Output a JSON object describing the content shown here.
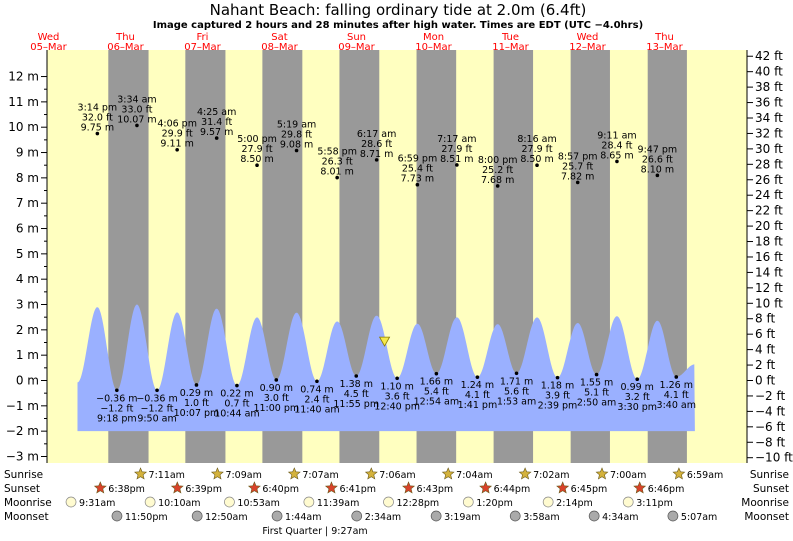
{
  "title": "Nahant Beach: falling  ordinary tide at 2.0m (6.4ft)",
  "subtitle": "Image captured 2 hours and 28 minutes after high water. Times are EDT (UTC −4.0hrs)",
  "colors": {
    "sky_day": "#ffffc0",
    "night": "#999999",
    "water": "#9ab0ff",
    "day_label": "#ff0000",
    "sun_star": "#d4b23c",
    "sunset_star": "#d9422a",
    "moonrise": "#fffbd0",
    "moonset": "#aaaaaa"
  },
  "chart_data": {
    "type": "area",
    "y_left": {
      "unit": "m",
      "min": -3,
      "max": 12,
      "ticks": [
        "−3 m",
        "−2 m",
        "−1 m",
        "0 m",
        "1 m",
        "2 m",
        "3 m",
        "4 m",
        "5 m",
        "6 m",
        "7 m",
        "8 m",
        "9 m",
        "10 m",
        "11 m",
        "12 m"
      ]
    },
    "y_right": {
      "unit": "ft",
      "ticks": [
        "−10 ft",
        "−8 ft",
        "−6 ft",
        "−4 ft",
        "−2 ft",
        "0 ft",
        "2 ft",
        "4 ft",
        "6 ft",
        "8 ft",
        "10 ft",
        "12 ft",
        "14 ft",
        "16 ft",
        "18 ft",
        "20 ft",
        "22 ft",
        "24 ft",
        "26 ft",
        "28 ft",
        "30 ft",
        "32 ft",
        "34 ft",
        "36 ft",
        "38 ft",
        "40 ft",
        "42 ft"
      ]
    },
    "days": [
      {
        "dow": "Wed",
        "date": "05–Mar"
      },
      {
        "dow": "Thu",
        "date": "06–Mar"
      },
      {
        "dow": "Fri",
        "date": "07–Mar"
      },
      {
        "dow": "Sat",
        "date": "08–Mar"
      },
      {
        "dow": "Sun",
        "date": "09–Mar"
      },
      {
        "dow": "Mon",
        "date": "10–Mar"
      },
      {
        "dow": "Tue",
        "date": "11–Mar"
      },
      {
        "dow": "Wed",
        "date": "12–Mar"
      },
      {
        "dow": "Thu",
        "date": "13–Mar"
      }
    ],
    "tides": [
      {
        "kind": "high",
        "time": "3:14 pm",
        "ft": "32.0 ft",
        "m": "9.75 m",
        "value_m": 9.75,
        "day": 0,
        "hour": 15.23
      },
      {
        "kind": "low",
        "time": "9:18 pm",
        "ft": "−1.2 ft",
        "m": "−0.36 m",
        "value_m": -0.36,
        "day": 0,
        "hour": 21.3
      },
      {
        "kind": "high",
        "time": "3:34 am",
        "ft": "33.0 ft",
        "m": "10.07 m",
        "value_m": 10.07,
        "day": 1,
        "hour": 3.57
      },
      {
        "kind": "low",
        "time": "9:50 am",
        "ft": "−1.2 ft",
        "m": "−0.36 m",
        "value_m": -0.36,
        "day": 1,
        "hour": 9.83
      },
      {
        "kind": "high",
        "time": "4:06 pm",
        "ft": "29.9 ft",
        "m": "9.11 m",
        "value_m": 9.11,
        "day": 1,
        "hour": 16.1
      },
      {
        "kind": "low",
        "time": "10:07 pm",
        "ft": "1.0 ft",
        "m": "0.29 m",
        "value_m": 0.29,
        "day": 1,
        "hour": 22.12
      },
      {
        "kind": "high",
        "time": "4:25 am",
        "ft": "31.4 ft",
        "m": "9.57 m",
        "value_m": 9.57,
        "day": 2,
        "hour": 4.42
      },
      {
        "kind": "low",
        "time": "10:44 am",
        "ft": "0.7 ft",
        "m": "0.22 m",
        "value_m": 0.22,
        "day": 2,
        "hour": 10.73
      },
      {
        "kind": "high",
        "time": "5:00 pm",
        "ft": "27.9 ft",
        "m": "8.50 m",
        "value_m": 8.5,
        "day": 2,
        "hour": 17.0
      },
      {
        "kind": "low",
        "time": "11:00 pm",
        "ft": "3.0 ft",
        "m": "0.90 m",
        "value_m": 0.9,
        "day": 2,
        "hour": 23.0
      },
      {
        "kind": "high",
        "time": "5:19 am",
        "ft": "29.8 ft",
        "m": "9.08 m",
        "value_m": 9.08,
        "day": 3,
        "hour": 5.32
      },
      {
        "kind": "low",
        "time": "11:40 am",
        "ft": "2.4 ft",
        "m": "0.74 m",
        "value_m": 0.74,
        "day": 3,
        "hour": 11.67
      },
      {
        "kind": "high",
        "time": "5:58 pm",
        "ft": "26.3 ft",
        "m": "8.01 m",
        "value_m": 8.01,
        "day": 3,
        "hour": 17.97
      },
      {
        "kind": "low",
        "time": "11:55 pm",
        "ft": "4.5 ft",
        "m": "1.38 m",
        "value_m": 1.38,
        "day": 3,
        "hour": 23.92
      },
      {
        "kind": "high",
        "time": "6:17 am",
        "ft": "28.6 ft",
        "m": "8.71 m",
        "value_m": 8.71,
        "day": 4,
        "hour": 6.28
      },
      {
        "kind": "low",
        "time": "12:40 pm",
        "ft": "3.6 ft",
        "m": "1.10 m",
        "value_m": 1.1,
        "day": 4,
        "hour": 12.67
      },
      {
        "kind": "high",
        "time": "6:59 pm",
        "ft": "25.4 ft",
        "m": "7.73 m",
        "value_m": 7.73,
        "day": 4,
        "hour": 18.98
      },
      {
        "kind": "low",
        "time": "12:54 am",
        "ft": "5.4 ft",
        "m": "1.66 m",
        "value_m": 1.66,
        "day": 5,
        "hour": 0.9
      },
      {
        "kind": "high",
        "time": "7:17 am",
        "ft": "27.9 ft",
        "m": "8.51 m",
        "value_m": 8.51,
        "day": 5,
        "hour": 7.28
      },
      {
        "kind": "low",
        "time": "1:41 pm",
        "ft": "4.1 ft",
        "m": "1.24 m",
        "value_m": 1.24,
        "day": 5,
        "hour": 13.68
      },
      {
        "kind": "high",
        "time": "8:00 pm",
        "ft": "25.2 ft",
        "m": "7.68 m",
        "value_m": 7.68,
        "day": 5,
        "hour": 20.0
      },
      {
        "kind": "low",
        "time": "1:53 am",
        "ft": "5.6 ft",
        "m": "1.71 m",
        "value_m": 1.71,
        "day": 6,
        "hour": 1.88
      },
      {
        "kind": "high",
        "time": "8:16 am",
        "ft": "27.9 ft",
        "m": "8.50 m",
        "value_m": 8.5,
        "day": 6,
        "hour": 8.27
      },
      {
        "kind": "low",
        "time": "2:39 pm",
        "ft": "3.9 ft",
        "m": "1.18 m",
        "value_m": 1.18,
        "day": 6,
        "hour": 14.65
      },
      {
        "kind": "high",
        "time": "8:57 pm",
        "ft": "25.7 ft",
        "m": "7.82 m",
        "value_m": 7.82,
        "day": 6,
        "hour": 20.95
      },
      {
        "kind": "low",
        "time": "2:50 am",
        "ft": "5.1 ft",
        "m": "1.55 m",
        "value_m": 1.55,
        "day": 7,
        "hour": 2.83
      },
      {
        "kind": "high",
        "time": "9:11 am",
        "ft": "28.4 ft",
        "m": "8.65 m",
        "value_m": 8.65,
        "day": 7,
        "hour": 9.18
      },
      {
        "kind": "low",
        "time": "3:30 pm",
        "ft": "3.2 ft",
        "m": "0.99 m",
        "value_m": 0.99,
        "day": 7,
        "hour": 15.5
      },
      {
        "kind": "high",
        "time": "9:47 pm",
        "ft": "26.6 ft",
        "m": "8.10 m",
        "value_m": 8.1,
        "day": 7,
        "hour": 21.78
      },
      {
        "kind": "low",
        "time": "3:40 am",
        "ft": "4.1 ft",
        "m": "1.26 m",
        "value_m": 1.26,
        "day": 8,
        "hour": 3.67
      }
    ],
    "current_marker": {
      "value_m": 2.0,
      "day": 4,
      "hour": 8.75
    }
  },
  "rows": {
    "sunrise_label": "Sunrise",
    "sunset_label": "Sunset",
    "moonrise_label": "Moonrise",
    "moonset_label": "Moonset",
    "sunrise": [
      {
        "time": "7:11am",
        "day": 1
      },
      {
        "time": "7:09am",
        "day": 2
      },
      {
        "time": "7:07am",
        "day": 3
      },
      {
        "time": "7:06am",
        "day": 4
      },
      {
        "time": "7:04am",
        "day": 5
      },
      {
        "time": "7:02am",
        "day": 6
      },
      {
        "time": "7:00am",
        "day": 7
      },
      {
        "time": "6:59am",
        "day": 8
      }
    ],
    "sunset": [
      {
        "time": "6:38pm",
        "day": 0
      },
      {
        "time": "6:39pm",
        "day": 1
      },
      {
        "time": "6:40pm",
        "day": 2
      },
      {
        "time": "6:41pm",
        "day": 3
      },
      {
        "time": "6:43pm",
        "day": 4
      },
      {
        "time": "6:44pm",
        "day": 5
      },
      {
        "time": "6:45pm",
        "day": 6
      },
      {
        "time": "6:46pm",
        "day": 7
      }
    ],
    "moonrise": [
      {
        "time": "9:31am",
        "day": 0
      },
      {
        "time": "10:10am",
        "day": 1
      },
      {
        "time": "10:53am",
        "day": 2
      },
      {
        "time": "11:39am",
        "day": 3
      },
      {
        "time": "12:28pm",
        "day": 4
      },
      {
        "time": "1:20pm",
        "day": 5
      },
      {
        "time": "2:14pm",
        "day": 6
      },
      {
        "time": "3:11pm",
        "day": 7
      }
    ],
    "moonset": [
      {
        "time": "11:50pm",
        "day": 0
      },
      {
        "time": "12:50am",
        "day": 2
      },
      {
        "time": "1:44am",
        "day": 3
      },
      {
        "time": "2:34am",
        "day": 4
      },
      {
        "time": "3:19am",
        "day": 5
      },
      {
        "time": "3:58am",
        "day": 6
      },
      {
        "time": "4:34am",
        "day": 7
      },
      {
        "time": "5:07am",
        "day": 8
      }
    ]
  },
  "moon_phase_note": "First Quarter | 9:27am"
}
